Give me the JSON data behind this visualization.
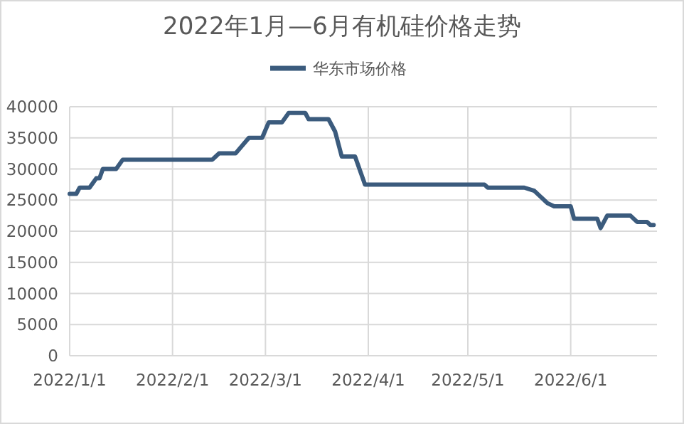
{
  "chart_data": {
    "type": "line",
    "title": "2022年1月—6月有机硅价格走势",
    "x": [
      "2022-01-01",
      "2022-01-03",
      "2022-01-04",
      "2022-01-07",
      "2022-01-09",
      "2022-01-10",
      "2022-01-11",
      "2022-01-15",
      "2022-01-17",
      "2022-02-13",
      "2022-02-14",
      "2022-02-15",
      "2022-02-20",
      "2022-02-24",
      "2022-02-28",
      "2022-03-02",
      "2022-03-06",
      "2022-03-08",
      "2022-03-13",
      "2022-03-14",
      "2022-03-20",
      "2022-03-22",
      "2022-03-24",
      "2022-03-28",
      "2022-03-31",
      "2022-05-06",
      "2022-05-07",
      "2022-05-18",
      "2022-05-21",
      "2022-05-25",
      "2022-05-27",
      "2022-06-01",
      "2022-06-02",
      "2022-06-09",
      "2022-06-10",
      "2022-06-12",
      "2022-06-19",
      "2022-06-21",
      "2022-06-24",
      "2022-06-25",
      "2022-06-26"
    ],
    "series": [
      {
        "name": "华东市场价格",
        "color": "#3b5b7d",
        "values": [
          26000,
          26000,
          27000,
          27000,
          28500,
          28500,
          30000,
          30000,
          31500,
          31500,
          32000,
          32500,
          32500,
          35000,
          35000,
          37500,
          37500,
          39000,
          39000,
          38000,
          38000,
          36000,
          32000,
          32000,
          27500,
          27500,
          27000,
          27000,
          26500,
          24500,
          24000,
          24000,
          22000,
          22000,
          20500,
          22500,
          22500,
          21500,
          21500,
          21000,
          21000
        ]
      }
    ],
    "xlim": [
      "2022-01-01",
      "2022-06-27"
    ],
    "xticks": [
      {
        "value": "2022-01-01",
        "label": "2022/1/1"
      },
      {
        "value": "2022-02-01",
        "label": "2022/2/1"
      },
      {
        "value": "2022-03-01",
        "label": "2022/3/1"
      },
      {
        "value": "2022-04-01",
        "label": "2022/4/1"
      },
      {
        "value": "2022-05-01",
        "label": "2022/5/1"
      },
      {
        "value": "2022-06-01",
        "label": "2022/6/1"
      }
    ],
    "ylim": [
      0,
      40000
    ],
    "yticks": [
      0,
      5000,
      10000,
      15000,
      20000,
      25000,
      30000,
      35000,
      40000
    ],
    "grid": true,
    "legend": "top",
    "marker": "none",
    "line_style": "solid"
  }
}
